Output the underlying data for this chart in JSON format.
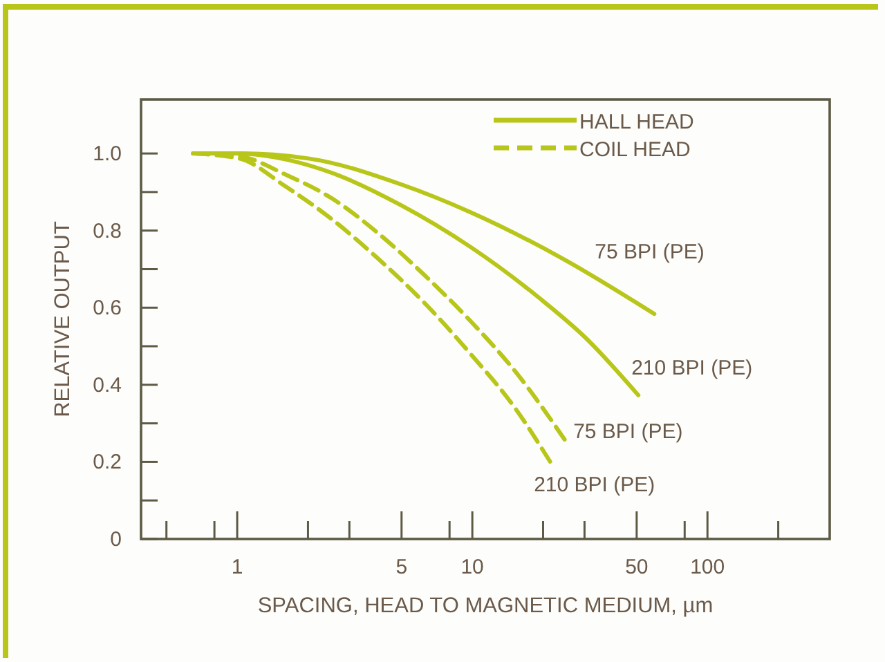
{
  "chart_data": {
    "type": "line",
    "xlabel": "SPACING, HEAD TO MAGNETIC MEDIUM, µm",
    "ylabel": "RELATIVE OUTPUT",
    "log": "x",
    "xlim": [
      0.39,
      331
    ],
    "xticks": [
      {
        "value": 0.5,
        "label": null
      },
      {
        "value": 0.8,
        "label": null
      },
      1,
      {
        "value": 2,
        "label": null
      },
      {
        "value": 3,
        "label": null
      },
      5,
      {
        "value": 8,
        "label": null
      },
      10,
      {
        "value": 20,
        "label": null
      },
      {
        "value": 30,
        "label": null
      },
      50,
      {
        "value": 80,
        "label": null
      },
      100,
      {
        "value": 200,
        "label": null
      }
    ],
    "ylim": [
      0,
      1.14
    ],
    "yticks": [
      0,
      {
        "value": 0.1,
        "label": null
      },
      0.2,
      {
        "value": 0.3,
        "label": null
      },
      0.4,
      {
        "value": 0.5,
        "label": null
      },
      0.6,
      {
        "value": 0.7,
        "label": null
      },
      0.8,
      {
        "value": 0.9,
        "label": null
      },
      {
        "value": 1.0,
        "label": "1.0"
      }
    ],
    "grid": false,
    "legend": "top right",
    "marker": "none",
    "series": [
      {
        "name": "HALL HEAD",
        "color": "#b8c61a",
        "line_style": "solid",
        "x": [
          0.65,
          1.02,
          2.01,
          4.97,
          9.8,
          24.1,
          59.4
        ],
        "values": [
          1.0,
          1.0,
          0.987,
          0.92,
          0.848,
          0.728,
          0.584
        ]
      },
      {
        "color": "#b8c61a",
        "line_style": "solid",
        "x": [
          0.65,
          1.02,
          1.28,
          2.52,
          4.97,
          9.8,
          19.2,
          30.2,
          50.8
        ],
        "values": [
          1.0,
          1.0,
          0.995,
          0.95,
          0.866,
          0.758,
          0.626,
          0.523,
          0.373
        ]
      },
      {
        "name": "COIL HEAD",
        "color": "#b8c61a",
        "line_style": "dashed",
        "x": [
          0.65,
          1.02,
          1.61,
          2.52,
          3.96,
          6.22,
          9.8,
          15.3,
          25.8
        ],
        "values": [
          1.0,
          0.993,
          0.945,
          0.884,
          0.794,
          0.686,
          0.566,
          0.433,
          0.241
        ]
      },
      {
        "color": "#b8c61a",
        "line_style": "dashed",
        "x": [
          0.65,
          1.02,
          1.61,
          2.52,
          3.96,
          6.22,
          9.8,
          15.3,
          21.5
        ],
        "values": [
          1.0,
          0.987,
          0.914,
          0.83,
          0.728,
          0.614,
          0.481,
          0.337,
          0.199
        ]
      }
    ],
    "annotations": [
      "75 BPI (PE)",
      "210 BPI (PE)",
      "75 BPI (PE)",
      "210 BPI (PE)"
    ]
  }
}
